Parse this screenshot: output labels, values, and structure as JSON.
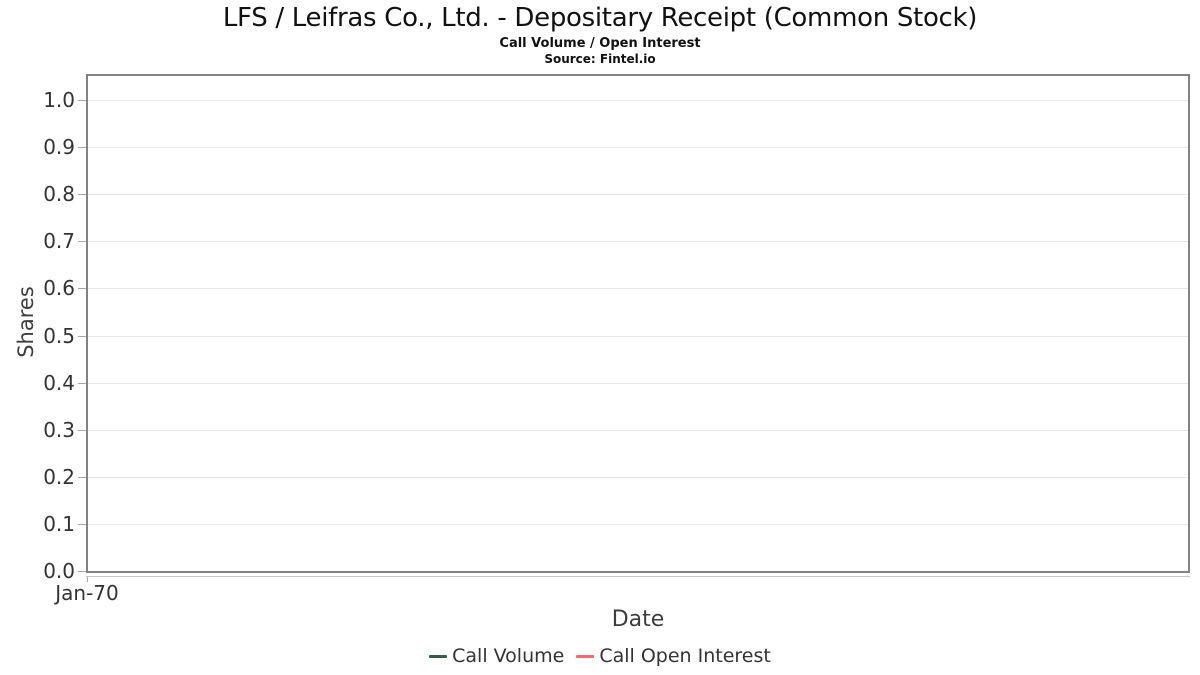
{
  "header": {
    "title": "LFS / Leifras Co., Ltd. - Depositary Receipt (Common Stock)",
    "subtitle": "Call Volume / Open Interest",
    "source": "Source: Fintel.io"
  },
  "axes": {
    "x_title": "Date",
    "y_title": "Shares",
    "x_tick_label": "Jan-70"
  },
  "colors": {
    "call_volume": "#2d6140",
    "call_open_interest": "#f8696b",
    "plot_border": "#828282",
    "gridline": "#e7e7e7",
    "tick": "#a8a8a8",
    "text": "#333333"
  },
  "chart_data": {
    "type": "line",
    "title": "LFS / Leifras Co., Ltd. - Depositary Receipt (Common Stock)",
    "subtitle": "Call Volume / Open Interest",
    "source": "Source: Fintel.io",
    "xlabel": "Date",
    "ylabel": "Shares",
    "ylim": [
      0.0,
      1.0
    ],
    "y_ticks": [
      {
        "label": "0.0",
        "value": 0.0
      },
      {
        "label": "0.1",
        "value": 0.1
      },
      {
        "label": "0.2",
        "value": 0.2
      },
      {
        "label": "0.3",
        "value": 0.3
      },
      {
        "label": "0.4",
        "value": 0.4
      },
      {
        "label": "0.5",
        "value": 0.5
      },
      {
        "label": "0.6",
        "value": 0.6
      },
      {
        "label": "0.7",
        "value": 0.7
      },
      {
        "label": "0.8",
        "value": 0.8
      },
      {
        "label": "0.9",
        "value": 0.9
      },
      {
        "label": "1.0",
        "value": 1.0
      }
    ],
    "x_tick_labels": [
      "Jan-70"
    ],
    "grid": "horizontal-only",
    "legend_position": "bottom-center",
    "series": [
      {
        "name": "Call Volume",
        "color": "#2d6140",
        "x": [],
        "values": []
      },
      {
        "name": "Call Open Interest",
        "color": "#f8696b",
        "x": [],
        "values": []
      }
    ],
    "notes": "Plot area is empty: no data points are drawn; axes show default range 0.0-1.0 with single epoch tick Jan-70."
  }
}
